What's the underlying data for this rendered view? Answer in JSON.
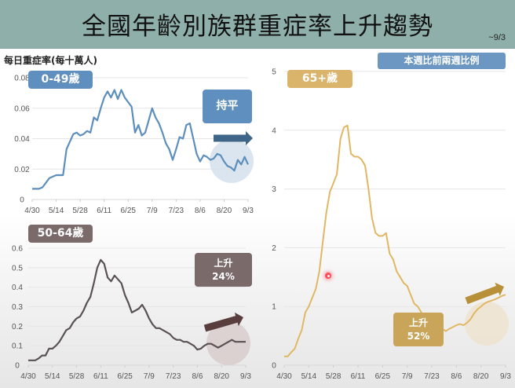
{
  "header": {
    "title": "全國年齡別族群重症率上升趨勢",
    "date_range": "~9/3"
  },
  "ylabel_main": "每日重症率(每十萬人)",
  "legend_note": "本週比前兩週比例",
  "colors": {
    "header_bg": "#8fb0aa",
    "blue": "#5d8fbd",
    "blue_badge": "#5f8fbf",
    "blue_arrow": "#3f6688",
    "blue_circle": "#d5e0ec",
    "brown": "#5a5252",
    "brown_badge": "#7a6a6a",
    "brown_arrow": "#5a3e3e",
    "brown_circle": "#d8cccc",
    "gold": "#e0b865",
    "gold_badge": "#d9b46a",
    "gold_trend_badge": "#c9a55a",
    "gold_arrow": "#b8903a",
    "gold_circle": "#efe3cf",
    "grid": "#e6e6e6"
  },
  "x_ticks": [
    "4/30",
    "5/14",
    "5/28",
    "6/11",
    "6/25",
    "7/9",
    "7/23",
    "8/6",
    "8/20",
    "9/3"
  ],
  "chart_data": [
    {
      "type": "line",
      "title": "0-49歲",
      "ylabel": "每日重症率(每十萬人)",
      "xlabel": "",
      "ylim": [
        0,
        0.08
      ],
      "y_ticks": [
        "0",
        "0.02",
        "0.04",
        "0.06",
        "0.08"
      ],
      "grid": true,
      "annotation": "持平",
      "trend": "flat",
      "x": [
        "4/30",
        "5/2",
        "5/4",
        "5/6",
        "5/8",
        "5/10",
        "5/12",
        "5/14",
        "5/16",
        "5/18",
        "5/20",
        "5/22",
        "5/24",
        "5/26",
        "5/28",
        "5/30",
        "6/1",
        "6/3",
        "6/5",
        "6/7",
        "6/9",
        "6/11",
        "6/13",
        "6/15",
        "6/17",
        "6/19",
        "6/21",
        "6/23",
        "6/25",
        "6/27",
        "6/29",
        "7/1",
        "7/3",
        "7/5",
        "7/7",
        "7/9",
        "7/11",
        "7/13",
        "7/15",
        "7/17",
        "7/19",
        "7/21",
        "7/23",
        "7/25",
        "7/27",
        "7/29",
        "7/31",
        "8/2",
        "8/4",
        "8/6",
        "8/8",
        "8/10",
        "8/12",
        "8/14",
        "8/16",
        "8/18",
        "8/20",
        "8/22",
        "8/24",
        "8/26",
        "8/28",
        "8/30",
        "9/1",
        "9/3"
      ],
      "values": [
        0.007,
        0.007,
        0.007,
        0.008,
        0.011,
        0.014,
        0.015,
        0.016,
        0.016,
        0.016,
        0.033,
        0.038,
        0.043,
        0.044,
        0.042,
        0.043,
        0.045,
        0.044,
        0.054,
        0.052,
        0.06,
        0.067,
        0.071,
        0.067,
        0.072,
        0.066,
        0.072,
        0.067,
        0.064,
        0.061,
        0.044,
        0.049,
        0.042,
        0.044,
        0.052,
        0.06,
        0.054,
        0.05,
        0.044,
        0.037,
        0.033,
        0.026,
        0.033,
        0.041,
        0.04,
        0.049,
        0.05,
        0.04,
        0.03,
        0.025,
        0.029,
        0.028,
        0.026,
        0.027,
        0.03,
        0.029,
        0.025,
        0.022,
        0.021,
        0.019,
        0.026,
        0.023,
        0.028,
        0.023
      ]
    },
    {
      "type": "line",
      "title": "50-64歲",
      "ylabel": "每日重症率(每十萬人)",
      "xlabel": "",
      "ylim": [
        0,
        0.6
      ],
      "y_ticks": [
        "0",
        "0.1",
        "0.2",
        "0.3",
        "0.4",
        "0.5",
        "0.6"
      ],
      "grid": true,
      "annotation": "上升 24%",
      "trend": "up",
      "change_pct": 24,
      "x": [
        "4/30",
        "5/2",
        "5/4",
        "5/6",
        "5/8",
        "5/10",
        "5/12",
        "5/14",
        "5/16",
        "5/18",
        "5/20",
        "5/22",
        "5/24",
        "5/26",
        "5/28",
        "5/30",
        "6/1",
        "6/3",
        "6/5",
        "6/7",
        "6/9",
        "6/11",
        "6/13",
        "6/15",
        "6/17",
        "6/19",
        "6/21",
        "6/23",
        "6/25",
        "6/27",
        "6/29",
        "7/1",
        "7/3",
        "7/5",
        "7/7",
        "7/9",
        "7/11",
        "7/13",
        "7/15",
        "7/17",
        "7/19",
        "7/21",
        "7/23",
        "7/25",
        "7/27",
        "7/29",
        "7/31",
        "8/2",
        "8/4",
        "8/6",
        "8/8",
        "8/10",
        "8/12",
        "8/14",
        "8/16",
        "8/18",
        "8/20",
        "8/22",
        "8/24",
        "8/26",
        "8/28",
        "8/30",
        "9/1",
        "9/3"
      ],
      "values": [
        0.025,
        0.025,
        0.025,
        0.035,
        0.05,
        0.05,
        0.085,
        0.085,
        0.1,
        0.12,
        0.15,
        0.18,
        0.19,
        0.22,
        0.24,
        0.25,
        0.28,
        0.32,
        0.35,
        0.42,
        0.5,
        0.54,
        0.52,
        0.45,
        0.43,
        0.46,
        0.44,
        0.42,
        0.36,
        0.32,
        0.27,
        0.28,
        0.29,
        0.31,
        0.28,
        0.24,
        0.21,
        0.19,
        0.19,
        0.18,
        0.17,
        0.16,
        0.14,
        0.13,
        0.13,
        0.12,
        0.12,
        0.11,
        0.1,
        0.08,
        0.085,
        0.1,
        0.11,
        0.11,
        0.1,
        0.09,
        0.1,
        0.11,
        0.12,
        0.13,
        0.12,
        0.12,
        0.12,
        0.12
      ]
    },
    {
      "type": "line",
      "title": "65+歲",
      "ylabel": "每日重症率(每十萬人)",
      "xlabel": "",
      "ylim": [
        0,
        5
      ],
      "y_ticks": [
        "0",
        "1",
        "2",
        "3",
        "4",
        "5"
      ],
      "grid": true,
      "annotation": "上升 52%",
      "trend": "up",
      "change_pct": 52,
      "x": [
        "4/30",
        "5/2",
        "5/4",
        "5/6",
        "5/8",
        "5/10",
        "5/12",
        "5/14",
        "5/16",
        "5/18",
        "5/20",
        "5/22",
        "5/24",
        "5/26",
        "5/28",
        "5/30",
        "6/1",
        "6/3",
        "6/5",
        "6/7",
        "6/9",
        "6/11",
        "6/13",
        "6/15",
        "6/17",
        "6/19",
        "6/21",
        "6/23",
        "6/25",
        "6/27",
        "6/29",
        "7/1",
        "7/3",
        "7/5",
        "7/7",
        "7/9",
        "7/11",
        "7/13",
        "7/15",
        "7/17",
        "7/19",
        "7/21",
        "7/23",
        "7/25",
        "7/27",
        "7/29",
        "7/31",
        "8/2",
        "8/4",
        "8/6",
        "8/8",
        "8/10",
        "8/12",
        "8/14",
        "8/16",
        "8/18",
        "8/20",
        "8/22",
        "8/24",
        "8/26",
        "8/28",
        "8/30",
        "9/1",
        "9/3"
      ],
      "values": [
        0.15,
        0.15,
        0.22,
        0.28,
        0.45,
        0.6,
        0.9,
        1.0,
        1.15,
        1.3,
        1.6,
        2.1,
        2.6,
        2.95,
        3.1,
        3.25,
        3.85,
        4.05,
        4.08,
        3.6,
        3.55,
        3.55,
        3.5,
        3.4,
        3.0,
        2.5,
        2.25,
        2.2,
        2.2,
        2.25,
        1.9,
        1.8,
        1.6,
        1.5,
        1.4,
        1.35,
        1.2,
        1.05,
        1.0,
        0.9,
        0.8,
        0.7,
        0.62,
        0.65,
        0.65,
        0.62,
        0.58,
        0.62,
        0.65,
        0.68,
        0.7,
        0.68,
        0.72,
        0.78,
        0.88,
        0.95,
        1.0,
        1.05,
        1.08,
        1.1,
        1.12,
        1.15,
        1.18,
        1.2
      ]
    }
  ],
  "charts_layout_values_note_removed": null,
  "charts": [
    {
      "badge": "0-49歲",
      "trend_label": "持平",
      "trend_pct": ""
    },
    {
      "badge": "50-64歲",
      "trend_label": "上升",
      "trend_pct": "24%"
    },
    {
      "badge": "65+歲",
      "trend_label": "上升",
      "trend_pct": "52%"
    }
  ]
}
